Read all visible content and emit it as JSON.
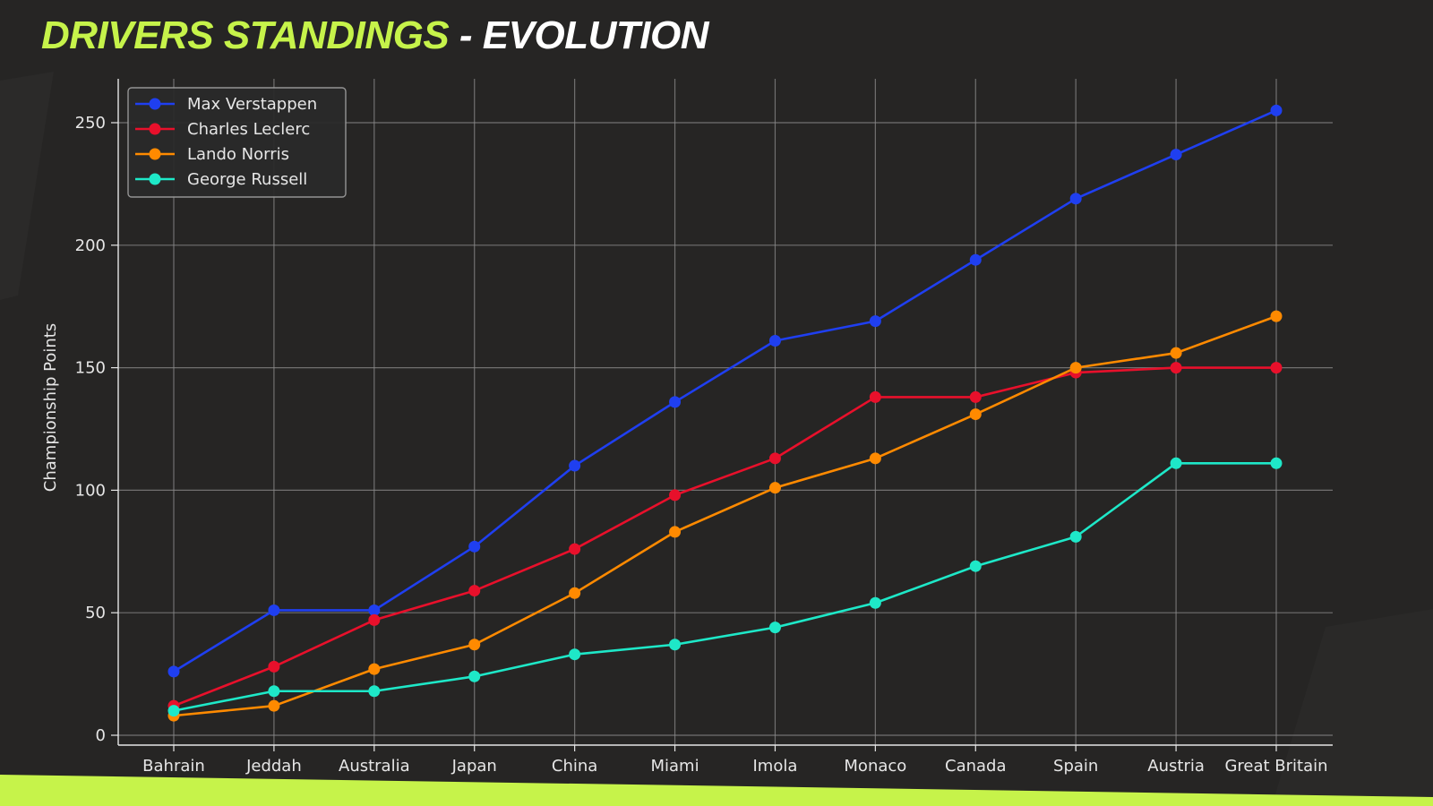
{
  "header": {
    "title_accent": "DRIVERS STANDINGS",
    "title_rest": " - EVOLUTION"
  },
  "colors": {
    "background": "#262524",
    "title_accent": "#c6f34a",
    "bottom_stripe": "#c6f34a",
    "grid": "#8a8a8a",
    "axis_text": "#e6e6e6"
  },
  "chart_data": {
    "type": "line",
    "title": "",
    "xlabel": "",
    "ylabel": "Championship Points",
    "ylim": [
      0,
      270
    ],
    "yticks": [
      0,
      50,
      100,
      150,
      200,
      250
    ],
    "grid": true,
    "legend_position": "top-left",
    "markers": "circle",
    "categories": [
      "Bahrain",
      "Jeddah",
      "Australia",
      "Japan",
      "China",
      "Miami",
      "Imola",
      "Monaco",
      "Canada",
      "Spain",
      "Austria",
      "Great Britain"
    ],
    "series": [
      {
        "name": "Max Verstappen",
        "color": "#1f3ff0",
        "values": [
          26,
          51,
          51,
          77,
          110,
          136,
          161,
          169,
          194,
          219,
          237,
          255
        ]
      },
      {
        "name": "Charles Leclerc",
        "color": "#e8102b",
        "values": [
          12,
          28,
          47,
          59,
          76,
          98,
          113,
          138,
          138,
          148,
          150,
          150
        ]
      },
      {
        "name": "Lando Norris",
        "color": "#ff8a00",
        "values": [
          8,
          12,
          27,
          37,
          58,
          83,
          101,
          113,
          131,
          150,
          156,
          171
        ]
      },
      {
        "name": "George Russell",
        "color": "#1ee8c8",
        "values": [
          10,
          18,
          18,
          24,
          33,
          37,
          44,
          54,
          69,
          81,
          111,
          111
        ]
      }
    ]
  }
}
